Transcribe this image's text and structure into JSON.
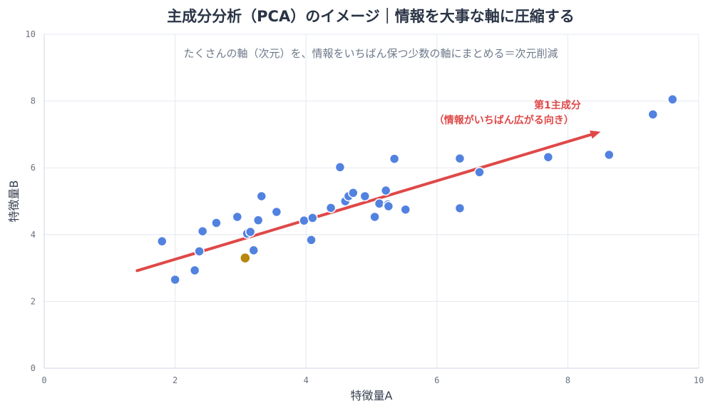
{
  "chart_data": {
    "type": "scatter",
    "title": "主成分分析（PCA）のイメージ｜情報を大事な軸に圧縮する",
    "subtitle": "たくさんの軸（次元）を、情報をいちばん保つ少数の軸にまとめる＝次元削減",
    "xlabel": "特徴量A",
    "ylabel": "特徴量B",
    "xlim": [
      0,
      10
    ],
    "ylim": [
      0,
      10
    ],
    "xticks": [
      0,
      2,
      4,
      6,
      8,
      10
    ],
    "yticks": [
      0,
      2,
      4,
      6,
      8,
      10
    ],
    "grid": true,
    "point_color": "#5282e0",
    "highlight_color": "#b8860b",
    "arrow_color": "#e04848",
    "points": [
      [
        1.8,
        3.8
      ],
      [
        2.0,
        2.65
      ],
      [
        2.3,
        2.93
      ],
      [
        2.37,
        3.5
      ],
      [
        2.42,
        4.1
      ],
      [
        2.63,
        4.35
      ],
      [
        2.95,
        4.53
      ],
      [
        3.1,
        4.03
      ],
      [
        3.15,
        4.08
      ],
      [
        3.2,
        3.53
      ],
      [
        3.27,
        4.43
      ],
      [
        3.32,
        5.15
      ],
      [
        3.55,
        4.68
      ],
      [
        3.97,
        4.42
      ],
      [
        4.08,
        3.84
      ],
      [
        4.1,
        4.5
      ],
      [
        4.38,
        4.8
      ],
      [
        4.52,
        6.02
      ],
      [
        4.6,
        5.0
      ],
      [
        4.65,
        5.15
      ],
      [
        4.72,
        5.25
      ],
      [
        4.9,
        5.15
      ],
      [
        5.05,
        4.53
      ],
      [
        5.12,
        4.93
      ],
      [
        5.22,
        5.32
      ],
      [
        5.25,
        4.9
      ],
      [
        5.26,
        4.85
      ],
      [
        5.35,
        6.27
      ],
      [
        5.52,
        4.75
      ],
      [
        6.35,
        6.28
      ],
      [
        6.35,
        4.79
      ],
      [
        6.65,
        5.87
      ],
      [
        7.7,
        6.32
      ],
      [
        8.63,
        6.39
      ],
      [
        9.3,
        7.6
      ],
      [
        9.6,
        8.05
      ]
    ],
    "highlight_point": [
      3.07,
      3.3
    ],
    "arrow": {
      "from": [
        1.42,
        2.92
      ],
      "to": [
        8.5,
        7.08
      ]
    },
    "annotation": {
      "line1": "第1主成分",
      "line2": "（情報がいちばん広がる向き）",
      "x": 8.2,
      "y": 7.78
    }
  }
}
